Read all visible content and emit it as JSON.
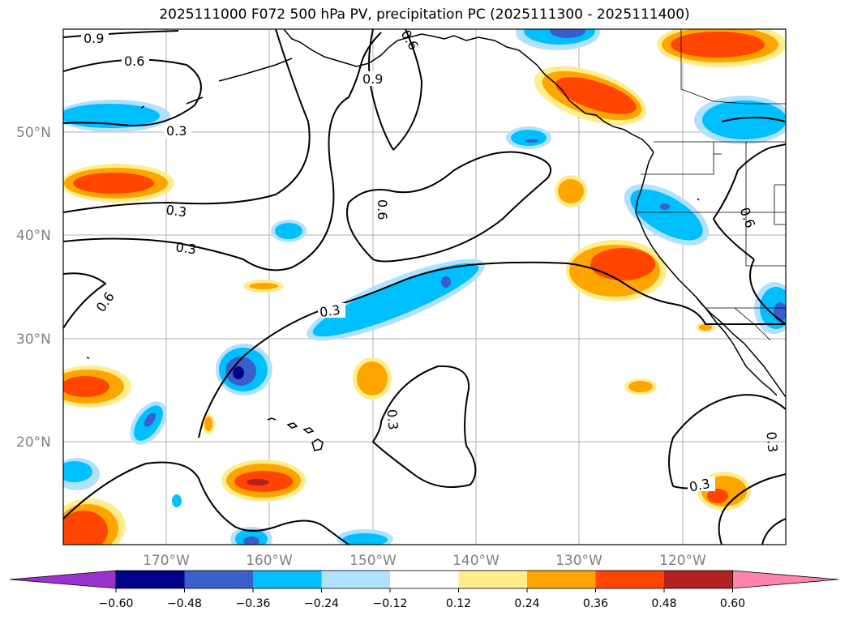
{
  "title": "2025111000 F072 500 hPa PV, precipitation PC (2025111300 - 2025111400)",
  "map": {
    "lon_range": [
      -180,
      -110
    ],
    "lat_range": [
      10,
      60
    ],
    "lat_labels": [
      "50°N",
      "40°N",
      "30°N",
      "20°N"
    ],
    "lon_labels": [
      "170°W",
      "160°W",
      "150°W",
      "140°W",
      "130°W",
      "120°W"
    ],
    "contour_labels": [
      "0.9",
      "0.6",
      "0.9",
      "0.6",
      "0.3",
      "0.3",
      "0.6",
      "0.3",
      "0.6",
      "0.3",
      "0.6",
      "0.3",
      "0.3",
      "0.3"
    ]
  },
  "colorbar": {
    "ticks": [
      "−0.60",
      "−0.48",
      "−0.36",
      "−0.24",
      "−0.12",
      "0.12",
      "0.24",
      "0.36",
      "0.48",
      "0.60"
    ],
    "colors": [
      "#9932cc",
      "#00008b",
      "#3a5fcd",
      "#00bfff",
      "#b0e2ff",
      "#ffffff",
      "#ffec8b",
      "#ffa500",
      "#ff4500",
      "#b22222",
      "#ff82ab"
    ]
  }
}
